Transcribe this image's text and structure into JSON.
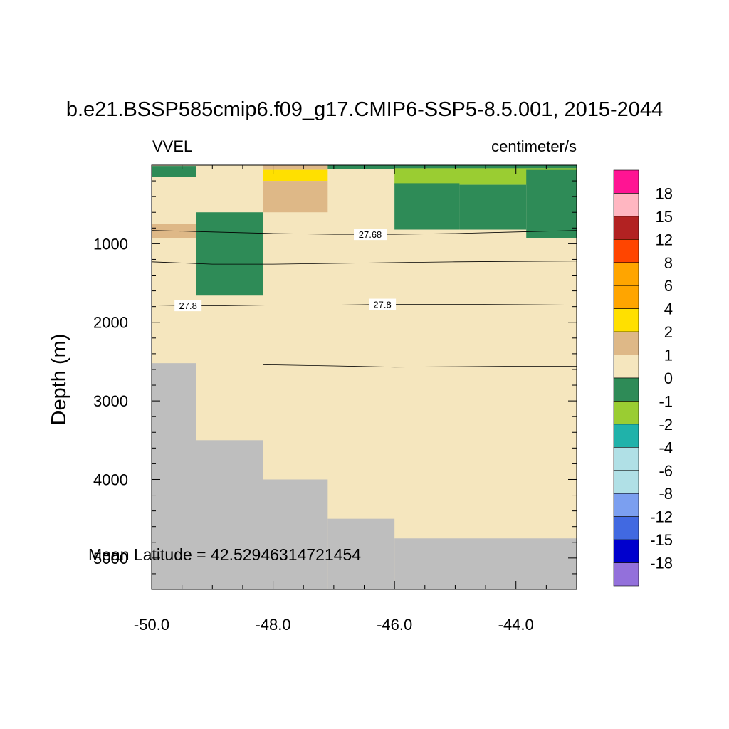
{
  "chart_data": {
    "type": "heatmap",
    "title": "b.e21.BSSP585cmip6.f09_g17.CMIP6-SSP5-8.5.001, 2015-2044",
    "left_label": "VVEL",
    "right_label": "centimeter/s",
    "ylabel": "Depth (m)",
    "xlabel": "",
    "annotation": "Mean Latitude = 42.52946314721454",
    "xlim": [
      -50.0,
      -43.0
    ],
    "ylim": [
      0,
      5400
    ],
    "y_inverted": true,
    "x_ticks": [
      -50.0,
      -48.0,
      -46.0,
      -44.0
    ],
    "x_tick_labels": [
      "-50.0",
      "-48.0",
      "-46.0",
      "-44.0"
    ],
    "y_ticks": [
      1000,
      2000,
      3000,
      4000,
      5000
    ],
    "y_tick_labels": [
      "1000",
      "2000",
      "3000",
      "4000",
      "5000"
    ],
    "land_color": "#bebebe",
    "background_level_color": "#f5e6be",
    "colorbar": {
      "colors": [
        "#ff1493",
        "#ffb6c1",
        "#b22222",
        "#ff4500",
        "#ffa500",
        "#ffa500",
        "#ffe000",
        "#deb887",
        "#f5e6be",
        "#2e8b57",
        "#9acd32",
        "#20b2aa",
        "#b0e0e6",
        "#b0e0e6",
        "#7b9ff0",
        "#4169e1",
        "#0000cd",
        "#9370db"
      ],
      "labels": [
        "18",
        "15",
        "12",
        "8",
        "6",
        "4",
        "2",
        "1",
        "0",
        "-1",
        "-2",
        "-4",
        "-6",
        "-8",
        "-12",
        "-15",
        "-18"
      ]
    },
    "cells": [
      {
        "x0": -50.0,
        "x1": -49.27,
        "d0": 10,
        "d1": 150,
        "color": "#2e8b57"
      },
      {
        "x0": -48.17,
        "x1": -47.1,
        "d0": 0,
        "d1": 60,
        "color": "#deb887"
      },
      {
        "x0": -48.17,
        "x1": -47.1,
        "d0": 60,
        "d1": 200,
        "color": "#ffe000"
      },
      {
        "x0": -48.17,
        "x1": -47.1,
        "d0": 200,
        "d1": 600,
        "color": "#deb887"
      },
      {
        "x0": -47.1,
        "x1": -46.0,
        "d0": 0,
        "d1": 50,
        "color": "#2e8b57"
      },
      {
        "x0": -46.0,
        "x1": -43.0,
        "d0": 0,
        "d1": 40,
        "color": "#2e8b57"
      },
      {
        "x0": -46.0,
        "x1": -43.0,
        "d0": 40,
        "d1": 250,
        "color": "#9acd32"
      },
      {
        "x0": -46.0,
        "x1": -44.93,
        "d0": 230,
        "d1": 820,
        "color": "#2e8b57"
      },
      {
        "x0": -44.93,
        "x1": -43.83,
        "d0": 250,
        "d1": 820,
        "color": "#2e8b57"
      },
      {
        "x0": -43.83,
        "x1": -43.0,
        "d0": 60,
        "d1": 930,
        "color": "#2e8b57"
      },
      {
        "x0": -50.0,
        "x1": -49.27,
        "d0": 750,
        "d1": 930,
        "color": "#deb887"
      },
      {
        "x0": -49.27,
        "x1": -48.17,
        "d0": 600,
        "d1": 1660,
        "color": "#2e8b57"
      }
    ],
    "land_steps": [
      {
        "x0": -50.0,
        "x1": -49.27,
        "depth": 2520
      },
      {
        "x0": -49.27,
        "x1": -48.17,
        "depth": 3500
      },
      {
        "x0": -48.17,
        "x1": -47.1,
        "depth": 4000
      },
      {
        "x0": -47.1,
        "x1": -46.0,
        "depth": 4500
      },
      {
        "x0": -46.0,
        "x1": -43.0,
        "depth": 4750
      }
    ],
    "contours": [
      {
        "label": "27.68",
        "label_x": -46.4,
        "points": [
          [
            -50.0,
            830
          ],
          [
            -49.0,
            850
          ],
          [
            -48.0,
            870
          ],
          [
            -47.0,
            880
          ],
          [
            -46.0,
            880
          ],
          [
            -45.0,
            870
          ],
          [
            -44.0,
            850
          ],
          [
            -43.0,
            830
          ]
        ]
      },
      {
        "label": "",
        "label_x": null,
        "points": [
          [
            -50.0,
            1230
          ],
          [
            -49.0,
            1260
          ],
          [
            -48.0,
            1260
          ],
          [
            -47.0,
            1250
          ],
          [
            -46.0,
            1240
          ],
          [
            -45.0,
            1230
          ],
          [
            -44.0,
            1225
          ],
          [
            -43.0,
            1220
          ]
        ]
      },
      {
        "label": "27.8",
        "label_x": [
          -49.4,
          -46.2
        ],
        "points": [
          [
            -50.0,
            1780
          ],
          [
            -49.0,
            1790
          ],
          [
            -48.0,
            1780
          ],
          [
            -47.0,
            1780
          ],
          [
            -46.0,
            1770
          ],
          [
            -45.0,
            1770
          ],
          [
            -44.0,
            1775
          ],
          [
            -43.0,
            1780
          ]
        ]
      },
      {
        "label": "",
        "label_x": null,
        "points": [
          [
            -48.17,
            2540
          ],
          [
            -47.0,
            2555
          ],
          [
            -46.0,
            2570
          ],
          [
            -45.0,
            2565
          ],
          [
            -44.0,
            2560
          ],
          [
            -43.0,
            2560
          ]
        ]
      }
    ]
  }
}
